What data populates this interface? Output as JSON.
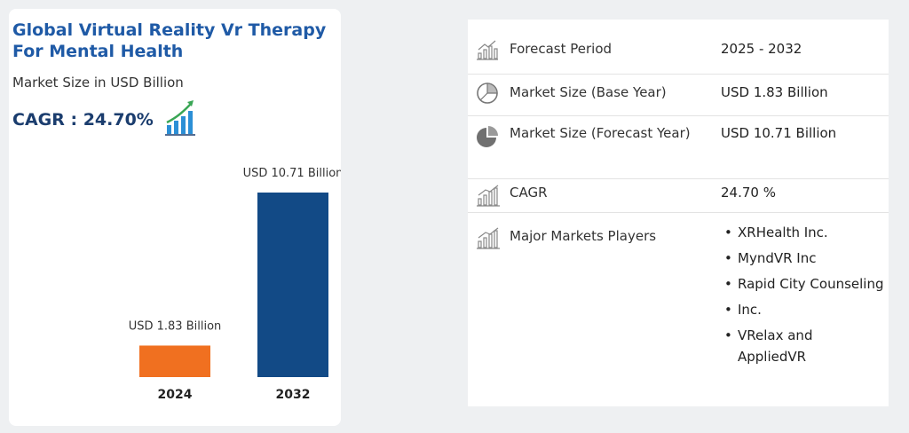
{
  "title": "Global Virtual Reality Vr Therapy For Mental Health",
  "subtitle": "Market Size in USD Billion",
  "cagr_label": "CAGR : 24.70%",
  "chart_data": {
    "type": "bar",
    "categories": [
      "2024",
      "2032"
    ],
    "values": [
      1.83,
      10.71
    ],
    "data_labels": [
      "USD 1.83 Billion",
      "USD 10.71 Billion"
    ],
    "colors": [
      "#f07020",
      "#124a86"
    ],
    "ylabel": "Market Size in USD Billion",
    "ylim": [
      0,
      10.71
    ]
  },
  "details": {
    "forecast_period": {
      "label": "Forecast Period",
      "value": "2025 - 2032",
      "icon": "growth-chart-icon"
    },
    "base_year": {
      "label": "Market Size (Base Year)",
      "value": "USD 1.83 Billion",
      "icon": "pie-chart-icon"
    },
    "forecast_year": {
      "label": "Market Size (Forecast Year)",
      "value": "USD 10.71 Billion",
      "icon": "pie-slice-icon"
    },
    "cagr": {
      "label": "CAGR",
      "value": "24.70 %",
      "icon": "bar-growth-icon"
    },
    "players": {
      "label": "Major Markets Players",
      "icon": "bar-growth-icon",
      "items": [
        "XRHealth Inc.",
        "MyndVR Inc",
        "Rapid City Counseling",
        "Inc.",
        "VRelax and AppliedVR"
      ]
    }
  }
}
